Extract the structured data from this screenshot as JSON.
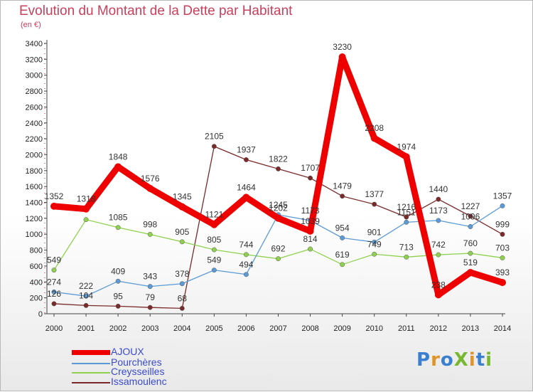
{
  "title": "Evolution du Montant de la Dette par Habitant",
  "unit_label": "(en €)",
  "logo_text": "ProXiti",
  "chart_data": {
    "type": "line",
    "categories": [
      "2000",
      "2001",
      "2002",
      "2003",
      "2004",
      "2005",
      "2006",
      "2007",
      "2008",
      "2009",
      "2010",
      "2011",
      "2012",
      "2013",
      "2014"
    ],
    "ylim": [
      0,
      3400
    ],
    "yticks": [
      0,
      200,
      400,
      600,
      800,
      1000,
      1200,
      1400,
      1600,
      1800,
      2000,
      2200,
      2400,
      2600,
      2800,
      3000,
      3200,
      3400
    ],
    "grid": false,
    "legend_position": "bottom-left",
    "series": [
      {
        "name": "AJOUX",
        "color": "#ee0000",
        "values": [
          1352,
          1318,
          1848,
          1576,
          1345,
          1121,
          1464,
          1202,
          1039,
          3230,
          2208,
          1974,
          238,
          519,
          393
        ]
      },
      {
        "name": "Pourchères",
        "color": "#5b9ad5",
        "values": [
          274,
          222,
          409,
          343,
          378,
          549,
          494,
          1245,
          1173,
          954,
          901,
          1151,
          1173,
          1096,
          1357
        ]
      },
      {
        "name": "Creysseilles",
        "color": "#8fd14f",
        "values": [
          549,
          1184,
          1085,
          998,
          905,
          805,
          744,
          692,
          814,
          619,
          749,
          713,
          742,
          760,
          703
        ]
      },
      {
        "name": "Issamoulenc",
        "color": "#7a2a2a",
        "values": [
          126,
          104,
          95,
          79,
          68,
          2105,
          1937,
          1822,
          1707,
          1479,
          1377,
          1216,
          1440,
          1227,
          999
        ]
      }
    ],
    "data_labels": {
      "AJOUX": [
        "1352",
        "1318",
        "1848",
        "1576",
        "1345",
        "1121",
        "1464",
        "1202",
        "1039",
        "3230",
        "2208",
        "1974",
        "238",
        "519",
        "393"
      ],
      "Pourchères": [
        "274",
        "222",
        "409",
        "343",
        "378",
        "549",
        "494",
        "1245",
        "1173",
        "954",
        "901",
        "1151",
        "1173",
        "1096",
        "1357"
      ],
      "Creysseilles": [
        "549",
        "",
        "1085",
        "998",
        "905",
        "805",
        "744",
        "692",
        "814",
        "619",
        "749",
        "713",
        "742",
        "760",
        "703"
      ],
      "Issamoulenc": [
        "126",
        "104",
        "95",
        "79",
        "68",
        "2105",
        "1937",
        "1822",
        "1707",
        "1479",
        "1377",
        "1216",
        "1440",
        "1227",
        "999"
      ]
    }
  },
  "legend": {
    "items": [
      "AJOUX",
      "Pourchères",
      "Creysseilles",
      "Issamoulenc"
    ]
  }
}
